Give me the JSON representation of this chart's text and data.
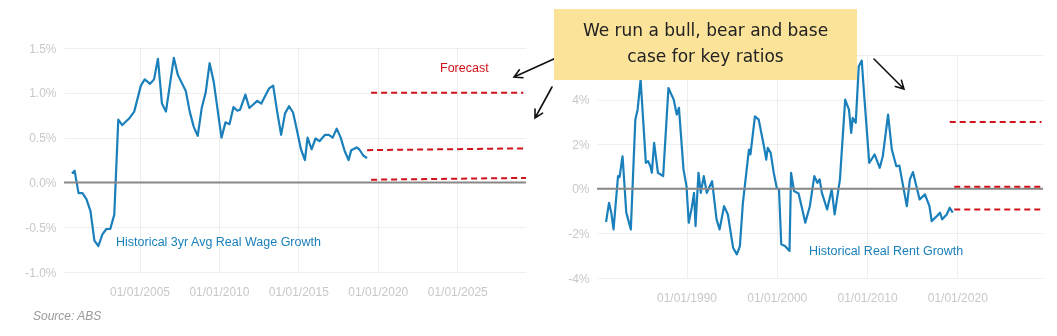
{
  "chart_data": [
    {
      "type": "line",
      "xlim": [
        "2000-04",
        "2029-05"
      ],
      "ylim": [
        -1.0,
        1.5
      ],
      "xticks": [
        {
          "value": "2005-01-01",
          "label": "01/01/2005"
        },
        {
          "value": "2010-01-01",
          "label": "01/01/2010"
        },
        {
          "value": "2015-01-01",
          "label": "01/01/2015"
        },
        {
          "value": "2020-01-01",
          "label": "01/01/2020"
        },
        {
          "value": "2025-01-01",
          "label": "01/01/2025"
        }
      ],
      "yticks": [
        {
          "value": -1.0,
          "label": "-1.0%"
        },
        {
          "value": -0.5,
          "label": "-0.5%"
        },
        {
          "value": 0,
          "label": "0.0%"
        },
        {
          "value": 0.5,
          "label": "0.5%"
        },
        {
          "value": 1.0,
          "label": "1.0%"
        },
        {
          "value": 1.5,
          "label": "1.5%"
        }
      ],
      "grid": true,
      "ref_lines": [
        {
          "axis": "y",
          "value": 0,
          "color": "#888888"
        }
      ],
      "annotations": [
        "Forecast",
        "Source: ABS"
      ],
      "series": [
        {
          "name": "Historical 3yr Avg Real Wage Growth",
          "color": "#1a80bb",
          "x": [
            "2000-10",
            "2000-12",
            "2001-03",
            "2001-06",
            "2001-09",
            "2001-12",
            "2002-03",
            "2002-06",
            "2002-09",
            "2002-12",
            "2003-03",
            "2003-06",
            "2003-09",
            "2003-12",
            "2004-05",
            "2004-09",
            "2005-02",
            "2005-05",
            "2005-09",
            "2005-12",
            "2006-03",
            "2006-06",
            "2006-09",
            "2007-03",
            "2007-06",
            "2007-09",
            "2007-12",
            "2008-03",
            "2008-06",
            "2008-09",
            "2008-12",
            "2009-03",
            "2009-06",
            "2009-09",
            "2010-03",
            "2010-06",
            "2010-09",
            "2010-12",
            "2011-03",
            "2011-05",
            "2011-09",
            "2011-12",
            "2012-06",
            "2012-09",
            "2013-03",
            "2013-06",
            "2013-09",
            "2013-12",
            "2014-03",
            "2014-06",
            "2014-09",
            "2014-12",
            "2015-03",
            "2015-06",
            "2015-08",
            "2015-11",
            "2016-02",
            "2016-05",
            "2016-09",
            "2016-12",
            "2017-03",
            "2017-06",
            "2017-09",
            "2017-12",
            "2018-03",
            "2018-05",
            "2018-09",
            "2018-11",
            "2019-02",
            "2019-05"
          ],
          "values": [
            0.1,
            0.13,
            -0.12,
            -0.12,
            -0.19,
            -0.32,
            -0.65,
            -0.71,
            -0.58,
            -0.52,
            -0.52,
            -0.36,
            0.7,
            0.64,
            0.71,
            0.79,
            1.08,
            1.15,
            1.1,
            1.15,
            1.38,
            0.88,
            0.79,
            1.39,
            1.2,
            1.11,
            1.02,
            0.79,
            0.62,
            0.52,
            0.83,
            1.0,
            1.33,
            1.13,
            0.5,
            0.67,
            0.65,
            0.84,
            0.8,
            0.81,
            0.98,
            0.83,
            0.91,
            0.88,
            1.05,
            1.08,
            0.79,
            0.53,
            0.77,
            0.85,
            0.78,
            0.58,
            0.37,
            0.25,
            0.5,
            0.37,
            0.49,
            0.46,
            0.53,
            0.53,
            0.5,
            0.6,
            0.5,
            0.35,
            0.25,
            0.36,
            0.39,
            0.37,
            0.3,
            0.27
          ]
        },
        {
          "color": "#d0121b",
          "line_style": "dashed",
          "x": [
            "2019-08",
            "2029-03"
          ],
          "values": [
            1.0,
            1.0
          ]
        },
        {
          "color": "#d0121b",
          "line_style": "dashed",
          "x": [
            "2019-05",
            "2029-05"
          ],
          "values": [
            0.36,
            0.38
          ]
        },
        {
          "color": "#d0121b",
          "line_style": "dashed",
          "x": [
            "2019-08",
            "2029-05"
          ],
          "values": [
            0.03,
            0.05
          ]
        }
      ]
    },
    {
      "type": "line",
      "xlim": [
        "1980-02",
        "2029-07"
      ],
      "ylim": [
        -4,
        6
      ],
      "xticks": [
        {
          "value": "1990-01-01",
          "label": "01/01/1990"
        },
        {
          "value": "2000-01-01",
          "label": "01/01/2000"
        },
        {
          "value": "2010-01-01",
          "label": "01/01/2010"
        },
        {
          "value": "2020-01-01",
          "label": "01/01/2020"
        }
      ],
      "yticks": [
        {
          "value": -4,
          "label": "-4%"
        },
        {
          "value": -2,
          "label": "-2%"
        },
        {
          "value": 0,
          "label": "0%"
        },
        {
          "value": 2,
          "label": "2%"
        },
        {
          "value": 4,
          "label": "4%"
        },
        {
          "value": 6,
          "label": null
        }
      ],
      "grid": true,
      "ref_lines": [
        {
          "axis": "y",
          "value": 0,
          "color": "#888888"
        }
      ],
      "annotations": [
        "We run a bull, bear and base case for key ratios"
      ],
      "series": [
        {
          "name": "Historical Real Rent Growth",
          "color": "#1a80bb",
          "x": [
            "1981-02",
            "1981-06",
            "1981-09",
            "1981-12",
            "1982-06",
            "1982-08",
            "1982-12",
            "1983-05",
            "1983-11",
            "1984-05",
            "1984-08",
            "1984-12",
            "1985-07",
            "1985-10",
            "1986-01",
            "1986-03",
            "1986-06",
            "1986-11",
            "1987-06",
            "1988-01",
            "1988-08",
            "1988-12",
            "1989-03",
            "1989-09",
            "1990-01",
            "1990-04",
            "1990-08",
            "1990-11",
            "1991-01",
            "1991-05",
            "1991-08",
            "1991-12",
            "1992-04",
            "1992-11",
            "1993-05",
            "1993-09",
            "1994-03",
            "1994-08",
            "1995-03",
            "1995-08",
            "1995-12",
            "1996-04",
            "1996-12",
            "1997-02",
            "1997-08",
            "1998-01",
            "1998-08",
            "1998-11",
            "1999-01",
            "1999-05",
            "1999-09",
            "2000-01",
            "2000-04",
            "2000-07",
            "2000-12",
            "2001-06",
            "2001-08",
            "2001-12",
            "2002-06",
            "2002-10",
            "2003-03",
            "2003-09",
            "2004-03",
            "2004-07",
            "2004-10",
            "2005-01",
            "2005-08",
            "2006-02",
            "2006-06",
            "2007-01",
            "2007-08",
            "2008-01",
            "2008-04",
            "2008-06",
            "2008-10",
            "2009-02",
            "2009-06",
            "2009-09",
            "2010-04",
            "2010-11",
            "2011-06",
            "2011-10",
            "2012-05",
            "2012-10",
            "2013-04",
            "2013-08",
            "2014-01",
            "2014-06",
            "2014-10",
            "2015-02",
            "2015-11",
            "2016-06",
            "2016-12",
            "2017-03",
            "2017-10",
            "2018-02",
            "2018-05",
            "2018-11",
            "2019-03",
            "2019-07"
          ],
          "values": [
            -1.49,
            -0.63,
            -1.07,
            -1.82,
            0.57,
            0.52,
            1.46,
            -1.07,
            -1.82,
            3.1,
            3.55,
            4.9,
            1.16,
            1.24,
            1.01,
            0.72,
            2.06,
            0.72,
            0.57,
            4.52,
            4.0,
            3.33,
            3.63,
            0.87,
            0.12,
            -1.52,
            -0.85,
            -0.18,
            -1.67,
            0.72,
            -0.18,
            0.57,
            -0.18,
            0.34,
            -1.37,
            -1.82,
            -0.78,
            -1.15,
            -2.64,
            -2.94,
            -2.57,
            -0.63,
            1.76,
            1.54,
            3.25,
            3.1,
            1.91,
            1.31,
            1.84,
            1.61,
            0.72,
            0.04,
            -0.03,
            -2.49,
            -2.57,
            -2.79,
            0.72,
            -0.1,
            -0.21,
            -0.78,
            -1.52,
            -0.78,
            0.57,
            0.27,
            0.42,
            -0.18,
            -0.93,
            -0.03,
            -1.15,
            0.42,
            4.0,
            3.55,
            2.51,
            3.18,
            2.96,
            5.49,
            5.75,
            4.3,
            1.16,
            1.54,
            0.94,
            1.46,
            3.33,
            1.76,
            1.01,
            1.04,
            0.12,
            -0.78,
            0.42,
            0.75,
            -0.48,
            -0.25,
            -0.78,
            -1.45,
            -1.22,
            -1.07,
            -1.37,
            -1.15,
            -0.85,
            -1.07
          ]
        },
        {
          "color": "#d0121b",
          "line_style": "dashed",
          "x": [
            "2019-03",
            "2029-05"
          ],
          "values": [
            3.0,
            3.0
          ]
        },
        {
          "color": "#d0121b",
          "line_style": "dashed",
          "x": [
            "2019-09",
            "2029-07"
          ],
          "values": [
            0.09,
            0.09
          ]
        },
        {
          "color": "#d0121b",
          "line_style": "dashed",
          "x": [
            "2019-09",
            "2029-07"
          ],
          "values": [
            -0.93,
            -0.93
          ]
        }
      ]
    }
  ]
}
